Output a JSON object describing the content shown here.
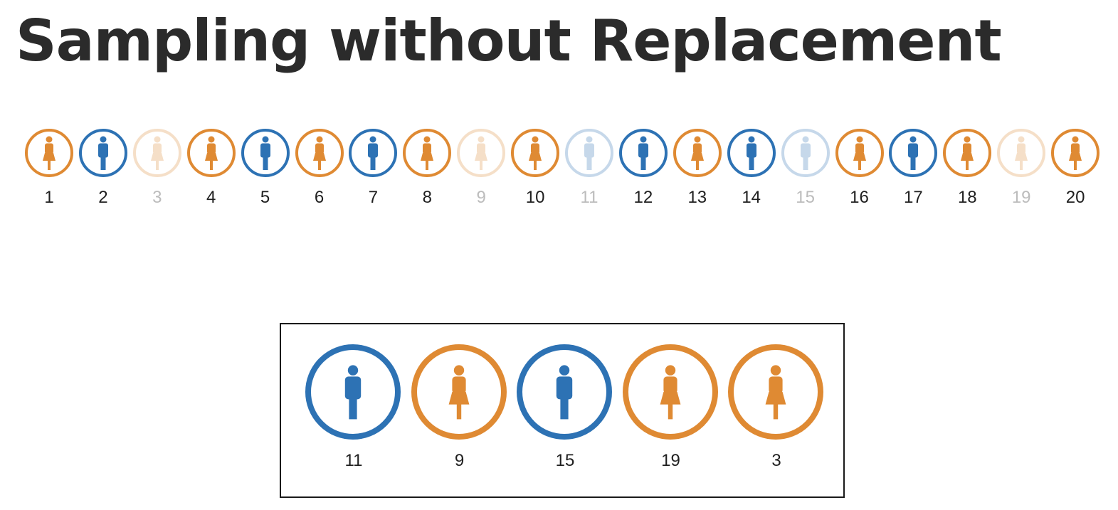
{
  "title": "Sampling without Replacement",
  "colors": {
    "male": "#2d72b4",
    "female": "#df8a33",
    "male_faded": "#c6d8ea",
    "female_faded": "#f5dfc8",
    "text": "#1f1f1f",
    "text_faded": "#bcbcbc"
  },
  "population": [
    {
      "label": "1",
      "person": "female",
      "picked": false
    },
    {
      "label": "2",
      "person": "male",
      "picked": false
    },
    {
      "label": "3",
      "person": "female",
      "picked": true
    },
    {
      "label": "4",
      "person": "female",
      "picked": false
    },
    {
      "label": "5",
      "person": "male",
      "picked": false
    },
    {
      "label": "6",
      "person": "female",
      "picked": false
    },
    {
      "label": "7",
      "person": "male",
      "picked": false
    },
    {
      "label": "8",
      "person": "female",
      "picked": false
    },
    {
      "label": "9",
      "person": "female",
      "picked": true
    },
    {
      "label": "10",
      "person": "female",
      "picked": false
    },
    {
      "label": "11",
      "person": "male",
      "picked": true
    },
    {
      "label": "12",
      "person": "male",
      "picked": false
    },
    {
      "label": "13",
      "person": "female",
      "picked": false
    },
    {
      "label": "14",
      "person": "male",
      "picked": false
    },
    {
      "label": "15",
      "person": "male",
      "picked": true
    },
    {
      "label": "16",
      "person": "female",
      "picked": false
    },
    {
      "label": "17",
      "person": "male",
      "picked": false
    },
    {
      "label": "18",
      "person": "female",
      "picked": false
    },
    {
      "label": "19",
      "person": "female",
      "picked": true
    },
    {
      "label": "20",
      "person": "female",
      "picked": false
    }
  ],
  "sample": [
    {
      "label": "11",
      "person": "male"
    },
    {
      "label": "9",
      "person": "female"
    },
    {
      "label": "15",
      "person": "male"
    },
    {
      "label": "19",
      "person": "female"
    },
    {
      "label": "3",
      "person": "female"
    }
  ]
}
